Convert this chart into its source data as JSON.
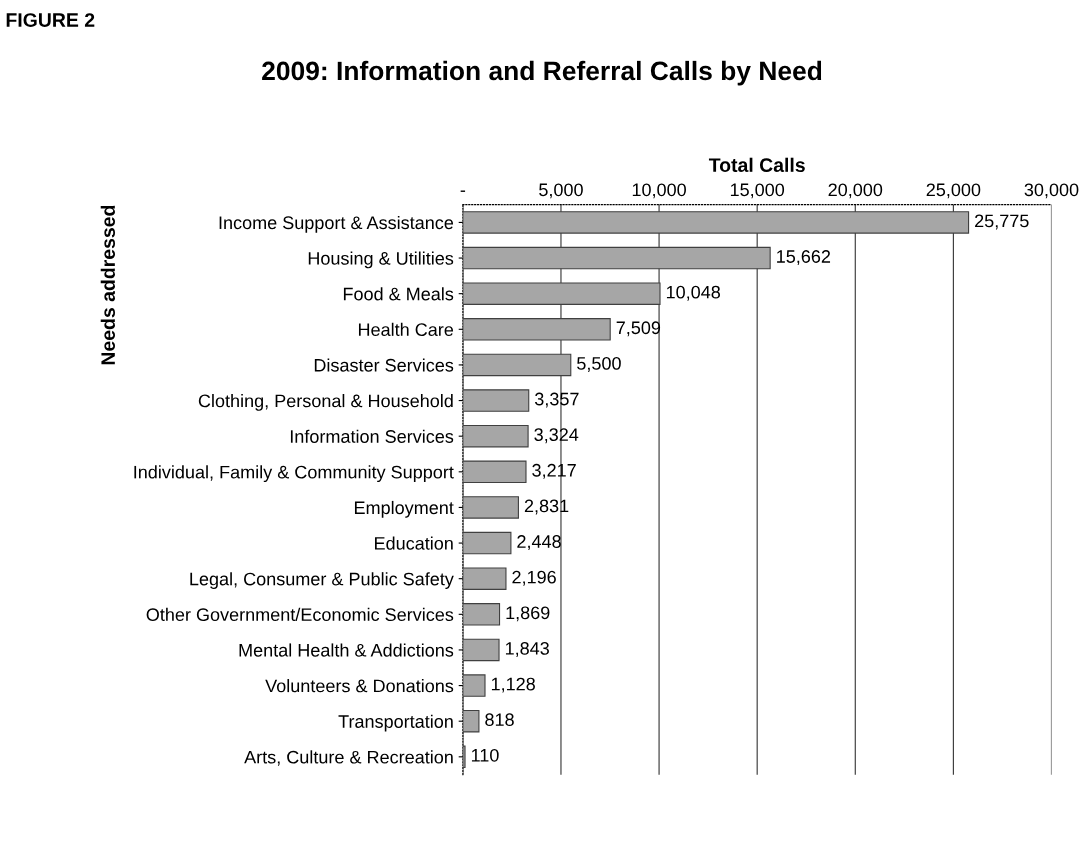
{
  "chart_data": {
    "type": "bar",
    "orientation": "horizontal",
    "title": "2009: Information and Referral Calls by Need",
    "xlabel": "Total Calls",
    "ylabel": "Needs addressed",
    "annotations": [
      "FIGURE 2"
    ],
    "categories": [
      "Income Support & Assistance",
      "Housing & Utilities",
      "Food & Meals",
      "Health Care",
      "Disaster Services",
      "Clothing, Personal & Household",
      "Information Services",
      "Individual, Family & Community Support",
      "Employment",
      "Education",
      "Legal, Consumer & Public Safety",
      "Other Government/Economic Services",
      "Mental Health & Addictions",
      "Volunteers & Donations",
      "Transportation",
      "Arts, Culture & Recreation"
    ],
    "values": [
      25775,
      15662,
      10048,
      7509,
      5500,
      3357,
      3324,
      3217,
      2831,
      2448,
      2196,
      1869,
      1843,
      1128,
      818,
      110
    ],
    "value_labels": [
      "25,775",
      "15,662",
      "10,048",
      "7,509",
      "5,500",
      "3,357",
      "3,324",
      "3,217",
      "2,831",
      "2,448",
      "2,196",
      "1,869",
      "1,843",
      "1,128",
      "818",
      "110"
    ],
    "color": "#a6a6a6",
    "xlim": [
      0,
      30000
    ],
    "xticks": [
      {
        "value": 0,
        "label": "-"
      },
      {
        "value": 5000,
        "label": "5,000"
      },
      {
        "value": 10000,
        "label": "10,000"
      },
      {
        "value": 15000,
        "label": "15,000"
      },
      {
        "value": 20000,
        "label": "20,000"
      },
      {
        "value": 25000,
        "label": "25,000"
      },
      {
        "value": 30000,
        "label": "30,000"
      }
    ],
    "grid": "x",
    "legend": false
  }
}
